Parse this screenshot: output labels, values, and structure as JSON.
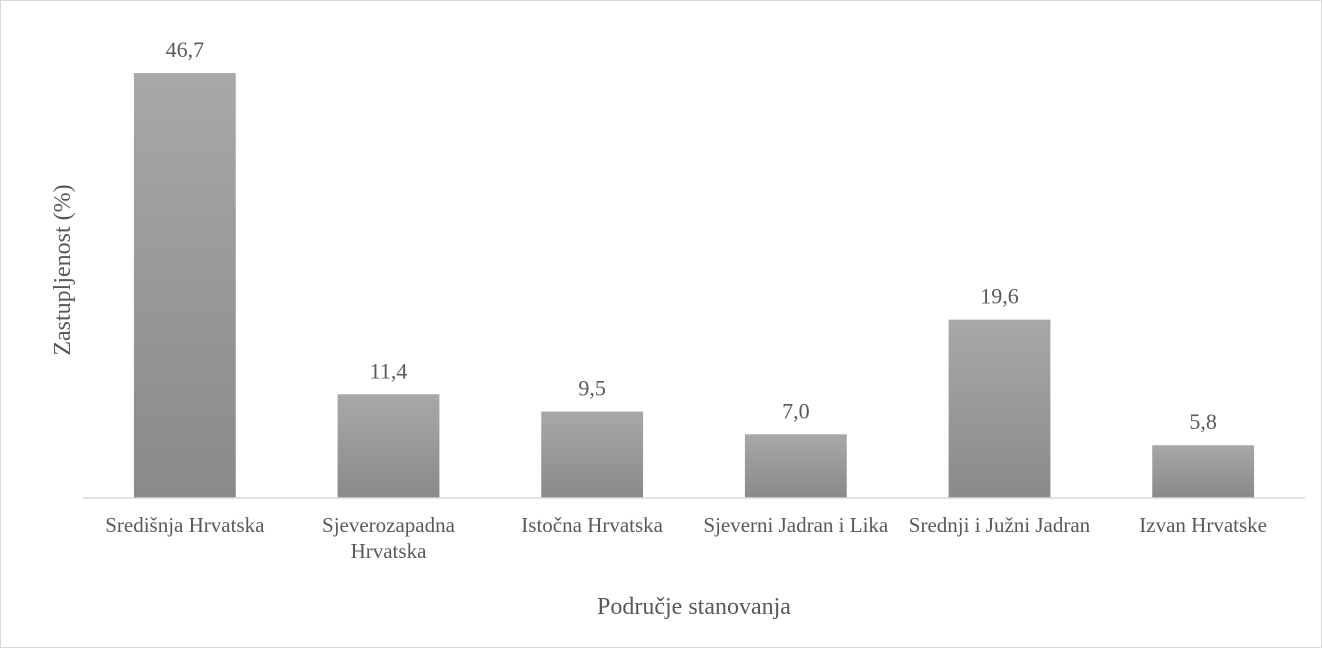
{
  "chart_data": {
    "type": "bar",
    "x_label": "Područje stanovanja",
    "y_label": "Zastupljenost (%)",
    "categories": [
      "Središnja Hrvatska",
      "Sjeverozapadna Hrvatska",
      "Istočna Hrvatska",
      "Sjeverni Jadran i Lika",
      "Srednji i Južni Jadran",
      "Izvan Hrvatske"
    ],
    "values": [
      46.7,
      11.4,
      9.5,
      7.0,
      19.6,
      5.8
    ],
    "value_labels": [
      "46,7",
      "11,4",
      "9,5",
      "7,0",
      "19,6",
      "5,8"
    ],
    "color": "#a8a8a8",
    "ylim": [
      0,
      50
    ],
    "grid": false
  }
}
